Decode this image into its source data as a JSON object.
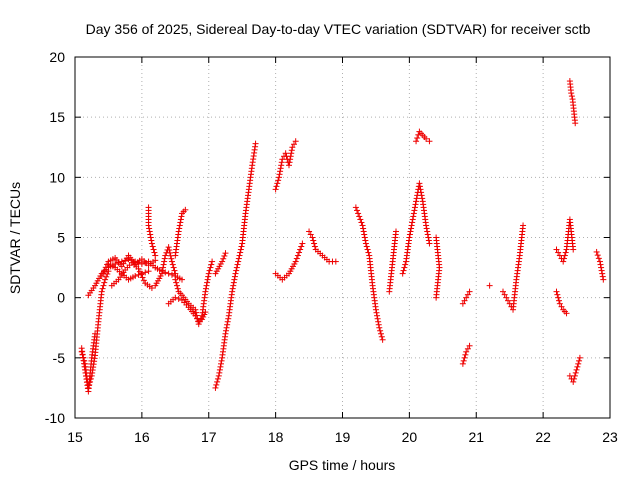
{
  "chart_data": {
    "type": "scatter",
    "title": "Day 356 of 2025, Sidereal Day-to-day VTEC variation (SDTVAR) for receiver sctb",
    "xlabel": "GPS time / hours",
    "ylabel": "SDTVAR / TECUs",
    "xlim": [
      15,
      23
    ],
    "ylim": [
      -10,
      20
    ],
    "xticks": [
      "15",
      "16",
      "17",
      "18",
      "19",
      "20",
      "21",
      "22",
      "23"
    ],
    "yticks": [
      "-10",
      "-5",
      "0",
      "5",
      "10",
      "15",
      "20"
    ],
    "grid": true,
    "marker": "plus",
    "color": "#ee0000",
    "segments": [
      [
        [
          15.1,
          -4.5
        ],
        [
          15.15,
          -5.5
        ],
        [
          15.2,
          -7.5
        ],
        [
          15.25,
          -6.5
        ],
        [
          15.3,
          -4.8
        ],
        [
          15.35,
          -2.0
        ],
        [
          15.4,
          0.5
        ],
        [
          15.45,
          1.5
        ],
        [
          15.5,
          2.2
        ]
      ],
      [
        [
          15.1,
          -4.2
        ],
        [
          15.15,
          -6.0
        ],
        [
          15.2,
          -7.8
        ],
        [
          15.25,
          -5.0
        ],
        [
          15.3,
          -3.0
        ]
      ],
      [
        [
          15.2,
          0.2
        ],
        [
          15.3,
          1.0
        ],
        [
          15.4,
          2.0
        ],
        [
          15.5,
          2.5
        ],
        [
          15.6,
          2.8
        ],
        [
          15.7,
          3.0
        ],
        [
          15.8,
          3.2
        ],
        [
          15.9,
          3.0
        ],
        [
          16.0,
          2.8
        ],
        [
          16.1,
          3.0
        ],
        [
          16.2,
          2.5
        ],
        [
          16.3,
          2.2
        ],
        [
          16.4,
          2.0
        ],
        [
          16.5,
          1.8
        ],
        [
          16.6,
          1.5
        ]
      ],
      [
        [
          15.5,
          2.8
        ],
        [
          15.6,
          2.5
        ],
        [
          15.7,
          2.0
        ],
        [
          15.8,
          1.5
        ],
        [
          15.9,
          1.8
        ],
        [
          16.0,
          2.0
        ],
        [
          16.1,
          2.2
        ]
      ],
      [
        [
          15.4,
          1.8
        ],
        [
          15.5,
          3.0
        ],
        [
          15.6,
          3.3
        ],
        [
          15.7,
          2.6
        ],
        [
          15.8,
          3.5
        ],
        [
          15.9,
          2.8
        ],
        [
          16.0,
          3.2
        ],
        [
          16.1,
          2.7
        ],
        [
          16.2,
          3.1
        ]
      ],
      [
        [
          15.55,
          1.0
        ],
        [
          15.65,
          1.5
        ],
        [
          15.75,
          2.3
        ],
        [
          15.85,
          2.9
        ],
        [
          15.95,
          2.4
        ],
        [
          16.05,
          1.2
        ],
        [
          16.15,
          0.8
        ]
      ],
      [
        [
          16.1,
          7.5
        ],
        [
          16.1,
          6.0
        ],
        [
          16.15,
          4.5
        ],
        [
          16.2,
          3.5
        ]
      ],
      [
        [
          16.2,
          1.0
        ],
        [
          16.3,
          2.0
        ],
        [
          16.35,
          3.5
        ],
        [
          16.4,
          4.2
        ],
        [
          16.45,
          3.0
        ],
        [
          16.5,
          2.0
        ]
      ],
      [
        [
          16.4,
          -0.5
        ],
        [
          16.5,
          0.0
        ],
        [
          16.6,
          -0.2
        ],
        [
          16.7,
          -0.8
        ],
        [
          16.8,
          -1.5
        ],
        [
          16.85,
          -2.0
        ],
        [
          16.9,
          -1.8
        ],
        [
          16.95,
          -1.2
        ]
      ],
      [
        [
          16.5,
          3.5
        ],
        [
          16.55,
          5.5
        ],
        [
          16.6,
          7.0
        ],
        [
          16.65,
          7.3
        ]
      ],
      [
        [
          16.5,
          1.5
        ],
        [
          16.55,
          0.5
        ],
        [
          16.6,
          0.2
        ],
        [
          16.7,
          -0.5
        ],
        [
          16.8,
          -1.0
        ],
        [
          16.85,
          -2.2
        ],
        [
          16.9,
          -1.5
        ],
        [
          16.95,
          0.5
        ],
        [
          17.0,
          2.0
        ],
        [
          17.05,
          3.0
        ]
      ],
      [
        [
          17.1,
          -7.5
        ],
        [
          17.15,
          -6.5
        ],
        [
          17.2,
          -5.0
        ],
        [
          17.25,
          -3.0
        ],
        [
          17.3,
          -1.5
        ],
        [
          17.35,
          0.5
        ],
        [
          17.4,
          2.0
        ],
        [
          17.5,
          4.5
        ],
        [
          17.55,
          7.0
        ],
        [
          17.6,
          9.0
        ],
        [
          17.65,
          11.0
        ],
        [
          17.7,
          12.8
        ]
      ],
      [
        [
          17.1,
          2.0
        ],
        [
          17.2,
          3.0
        ],
        [
          17.25,
          3.7
        ]
      ],
      [
        [
          18.0,
          9.0
        ],
        [
          18.05,
          10.0
        ],
        [
          18.1,
          11.5
        ],
        [
          18.15,
          12.0
        ],
        [
          18.2,
          11.0
        ],
        [
          18.25,
          12.5
        ],
        [
          18.3,
          13.0
        ]
      ],
      [
        [
          18.0,
          2.0
        ],
        [
          18.1,
          1.5
        ],
        [
          18.2,
          2.0
        ],
        [
          18.3,
          3.0
        ],
        [
          18.4,
          4.5
        ]
      ],
      [
        [
          18.5,
          5.5
        ],
        [
          18.55,
          5.0
        ],
        [
          18.6,
          4.0
        ],
        [
          18.7,
          3.5
        ],
        [
          18.8,
          3.0
        ],
        [
          18.9,
          3.0
        ]
      ],
      [
        [
          19.2,
          7.5
        ],
        [
          19.3,
          6.0
        ],
        [
          19.35,
          4.5
        ],
        [
          19.4,
          3.5
        ],
        [
          19.45,
          1.0
        ],
        [
          19.5,
          -1.0
        ],
        [
          19.55,
          -2.5
        ],
        [
          19.6,
          -3.5
        ]
      ],
      [
        [
          19.7,
          0.5
        ],
        [
          19.8,
          5.5
        ]
      ],
      [
        [
          19.9,
          2.0
        ],
        [
          19.95,
          3.0
        ],
        [
          20.0,
          5.0
        ],
        [
          20.05,
          6.5
        ],
        [
          20.1,
          8.0
        ],
        [
          20.15,
          9.5
        ],
        [
          20.2,
          8.0
        ],
        [
          20.25,
          6.0
        ],
        [
          20.3,
          4.5
        ]
      ],
      [
        [
          20.1,
          13.0
        ],
        [
          20.15,
          13.8
        ],
        [
          20.2,
          13.5
        ],
        [
          20.25,
          13.2
        ],
        [
          20.3,
          13.0
        ]
      ],
      [
        [
          20.4,
          5.0
        ],
        [
          20.45,
          2.5
        ],
        [
          20.4,
          0.0
        ]
      ],
      [
        [
          20.8,
          -5.5
        ],
        [
          20.85,
          -4.5
        ],
        [
          20.9,
          -4.0
        ]
      ],
      [
        [
          20.8,
          -0.5
        ],
        [
          20.85,
          0.0
        ],
        [
          20.9,
          0.5
        ]
      ],
      [
        [
          21.2,
          1.0
        ]
      ],
      [
        [
          21.4,
          0.5
        ],
        [
          21.45,
          0.0
        ],
        [
          21.5,
          -0.5
        ],
        [
          21.55,
          -1.0
        ],
        [
          21.6,
          1.5
        ],
        [
          21.65,
          3.5
        ],
        [
          21.7,
          6.0
        ]
      ],
      [
        [
          22.2,
          4.0
        ],
        [
          22.25,
          3.5
        ],
        [
          22.3,
          3.0
        ],
        [
          22.35,
          4.0
        ],
        [
          22.4,
          6.5
        ],
        [
          22.45,
          4.0
        ]
      ],
      [
        [
          22.2,
          0.5
        ],
        [
          22.25,
          -0.5
        ],
        [
          22.3,
          -1.0
        ],
        [
          22.35,
          -1.3
        ]
      ],
      [
        [
          22.4,
          18.0
        ],
        [
          22.42,
          17.0
        ],
        [
          22.44,
          16.5
        ],
        [
          22.46,
          15.5
        ],
        [
          22.48,
          14.5
        ]
      ],
      [
        [
          22.4,
          -6.5
        ],
        [
          22.45,
          -7.0
        ],
        [
          22.5,
          -6.0
        ],
        [
          22.55,
          -5.0
        ]
      ],
      [
        [
          22.8,
          3.8
        ],
        [
          22.85,
          3.0
        ],
        [
          22.9,
          1.5
        ]
      ]
    ]
  }
}
